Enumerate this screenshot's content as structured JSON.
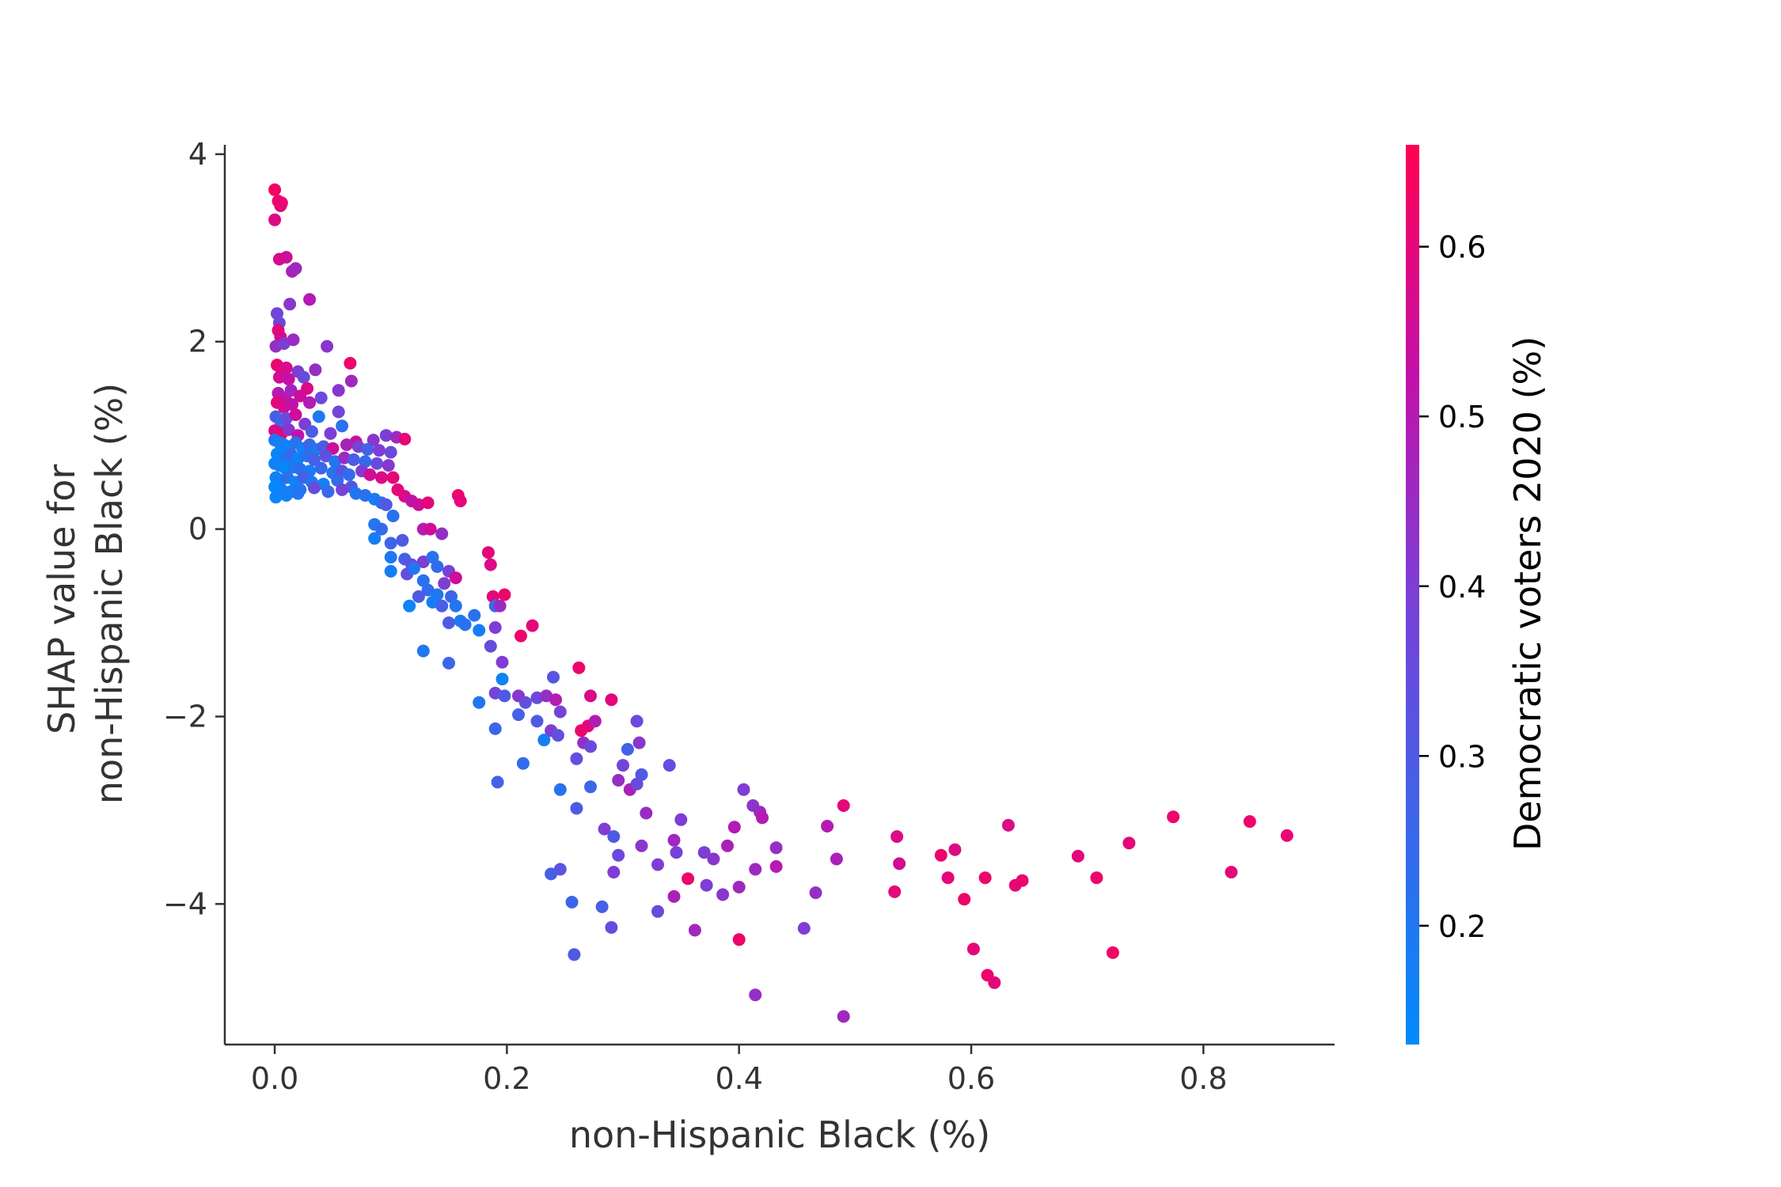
{
  "chart_data": {
    "type": "scatter",
    "xlabel": "non-Hispanic Black (%)",
    "ylabel_lines": [
      "SHAP value for",
      "non-Hispanic Black (%)"
    ],
    "xlim": [
      -0.043,
      0.913
    ],
    "ylim": [
      -5.5,
      4.1
    ],
    "xticks": [
      0.0,
      0.2,
      0.4,
      0.6,
      0.8
    ],
    "xtick_labels": [
      "0.0",
      "0.2",
      "0.4",
      "0.6",
      "0.8"
    ],
    "yticks": [
      4,
      2,
      0,
      -2,
      -4
    ],
    "ytick_labels": [
      "4",
      "2",
      "0",
      "−2",
      "−4"
    ],
    "grid": false,
    "colorbar": {
      "label": "Democratic voters 2020 (%)",
      "range": [
        0.13,
        0.66
      ],
      "ticks": [
        0.6,
        0.5,
        0.4,
        0.3,
        0.2
      ],
      "tick_labels": [
        "0.6",
        "0.5",
        "0.4",
        "0.3",
        "0.2"
      ],
      "low_color": "#008bfb",
      "high_color": "#ff0052"
    },
    "points": [
      [
        0.0,
        3.62,
        0.63
      ],
      [
        0.003,
        3.5,
        0.62
      ],
      [
        0.005,
        3.45,
        0.6
      ],
      [
        0.0,
        3.3,
        0.58
      ],
      [
        0.006,
        3.48,
        0.61
      ],
      [
        0.004,
        2.88,
        0.57
      ],
      [
        0.01,
        2.9,
        0.55
      ],
      [
        0.015,
        2.75,
        0.48
      ],
      [
        0.018,
        2.78,
        0.46
      ],
      [
        0.03,
        2.45,
        0.5
      ],
      [
        0.002,
        2.3,
        0.38
      ],
      [
        0.004,
        2.2,
        0.36
      ],
      [
        0.013,
        2.4,
        0.42
      ],
      [
        0.003,
        2.12,
        0.6
      ],
      [
        0.005,
        2.05,
        0.58
      ],
      [
        0.001,
        1.95,
        0.44
      ],
      [
        0.008,
        1.98,
        0.4
      ],
      [
        0.016,
        2.02,
        0.45
      ],
      [
        0.045,
        1.95,
        0.42
      ],
      [
        0.002,
        1.75,
        0.62
      ],
      [
        0.006,
        1.7,
        0.59
      ],
      [
        0.01,
        1.72,
        0.57
      ],
      [
        0.004,
        1.62,
        0.56
      ],
      [
        0.012,
        1.6,
        0.53
      ],
      [
        0.02,
        1.68,
        0.4
      ],
      [
        0.025,
        1.62,
        0.35
      ],
      [
        0.035,
        1.7,
        0.44
      ],
      [
        0.065,
        1.77,
        0.62
      ],
      [
        0.066,
        1.58,
        0.46
      ],
      [
        0.055,
        1.48,
        0.42
      ],
      [
        0.003,
        1.45,
        0.5
      ],
      [
        0.009,
        1.4,
        0.52
      ],
      [
        0.014,
        1.48,
        0.47
      ],
      [
        0.022,
        1.42,
        0.55
      ],
      [
        0.028,
        1.5,
        0.58
      ],
      [
        0.002,
        1.35,
        0.6
      ],
      [
        0.008,
        1.3,
        0.56
      ],
      [
        0.015,
        1.33,
        0.52
      ],
      [
        0.03,
        1.35,
        0.5
      ],
      [
        0.04,
        1.4,
        0.36
      ],
      [
        0.001,
        1.2,
        0.3
      ],
      [
        0.005,
        1.15,
        0.25
      ],
      [
        0.01,
        1.18,
        0.35
      ],
      [
        0.018,
        1.22,
        0.55
      ],
      [
        0.026,
        1.12,
        0.4
      ],
      [
        0.038,
        1.2,
        0.2
      ],
      [
        0.055,
        1.25,
        0.38
      ],
      [
        0.058,
        1.1,
        0.22
      ],
      [
        0.0,
        1.05,
        0.58
      ],
      [
        0.006,
        1.02,
        0.6
      ],
      [
        0.012,
        1.06,
        0.42
      ],
      [
        0.02,
        1.0,
        0.52
      ],
      [
        0.032,
        1.04,
        0.3
      ],
      [
        0.048,
        1.02,
        0.4
      ],
      [
        0.07,
        0.93,
        0.55
      ],
      [
        0.085,
        0.95,
        0.42
      ],
      [
        0.096,
        1.0,
        0.4
      ],
      [
        0.105,
        0.98,
        0.45
      ],
      [
        0.112,
        0.96,
        0.6
      ],
      [
        0.0,
        0.95,
        0.2
      ],
      [
        0.004,
        0.92,
        0.16
      ],
      [
        0.008,
        0.9,
        0.18
      ],
      [
        0.012,
        0.88,
        0.15
      ],
      [
        0.018,
        0.92,
        0.22
      ],
      [
        0.024,
        0.86,
        0.17
      ],
      [
        0.03,
        0.9,
        0.25
      ],
      [
        0.036,
        0.85,
        0.19
      ],
      [
        0.042,
        0.88,
        0.3
      ],
      [
        0.05,
        0.86,
        0.55
      ],
      [
        0.062,
        0.9,
        0.48
      ],
      [
        0.072,
        0.88,
        0.38
      ],
      [
        0.08,
        0.85,
        0.28
      ],
      [
        0.09,
        0.84,
        0.4
      ],
      [
        0.1,
        0.82,
        0.36
      ],
      [
        0.002,
        0.8,
        0.14
      ],
      [
        0.006,
        0.78,
        0.17
      ],
      [
        0.01,
        0.76,
        0.2
      ],
      [
        0.014,
        0.8,
        0.24
      ],
      [
        0.02,
        0.75,
        0.16
      ],
      [
        0.028,
        0.78,
        0.22
      ],
      [
        0.034,
        0.74,
        0.28
      ],
      [
        0.044,
        0.78,
        0.33
      ],
      [
        0.052,
        0.72,
        0.2
      ],
      [
        0.06,
        0.76,
        0.45
      ],
      [
        0.068,
        0.74,
        0.3
      ],
      [
        0.078,
        0.72,
        0.24
      ],
      [
        0.088,
        0.7,
        0.35
      ],
      [
        0.098,
        0.68,
        0.42
      ],
      [
        0.0,
        0.7,
        0.15
      ],
      [
        0.004,
        0.68,
        0.17
      ],
      [
        0.009,
        0.65,
        0.14
      ],
      [
        0.016,
        0.66,
        0.19
      ],
      [
        0.022,
        0.64,
        0.23
      ],
      [
        0.03,
        0.62,
        0.18
      ],
      [
        0.04,
        0.65,
        0.26
      ],
      [
        0.05,
        0.6,
        0.21
      ],
      [
        0.058,
        0.62,
        0.33
      ],
      [
        0.064,
        0.58,
        0.24
      ],
      [
        0.075,
        0.62,
        0.4
      ],
      [
        0.082,
        0.58,
        0.55
      ],
      [
        0.092,
        0.55,
        0.58
      ],
      [
        0.102,
        0.55,
        0.6
      ],
      [
        0.001,
        0.55,
        0.16
      ],
      [
        0.005,
        0.52,
        0.18
      ],
      [
        0.011,
        0.55,
        0.22
      ],
      [
        0.018,
        0.5,
        0.15
      ],
      [
        0.025,
        0.55,
        0.28
      ],
      [
        0.032,
        0.5,
        0.2
      ],
      [
        0.042,
        0.48,
        0.17
      ],
      [
        0.054,
        0.52,
        0.24
      ],
      [
        0.066,
        0.45,
        0.3
      ],
      [
        0.0,
        0.45,
        0.14
      ],
      [
        0.006,
        0.42,
        0.16
      ],
      [
        0.014,
        0.4,
        0.19
      ],
      [
        0.022,
        0.42,
        0.21
      ],
      [
        0.034,
        0.44,
        0.35
      ],
      [
        0.046,
        0.4,
        0.25
      ],
      [
        0.058,
        0.42,
        0.38
      ],
      [
        0.07,
        0.38,
        0.2
      ],
      [
        0.078,
        0.36,
        0.22
      ],
      [
        0.086,
        0.32,
        0.18
      ],
      [
        0.092,
        0.28,
        0.23
      ],
      [
        0.096,
        0.26,
        0.3
      ],
      [
        0.106,
        0.42,
        0.6
      ],
      [
        0.112,
        0.35,
        0.58
      ],
      [
        0.118,
        0.3,
        0.52
      ],
      [
        0.124,
        0.26,
        0.55
      ],
      [
        0.132,
        0.28,
        0.6
      ],
      [
        0.158,
        0.36,
        0.62
      ],
      [
        0.16,
        0.3,
        0.6
      ],
      [
        0.001,
        0.34,
        0.15
      ],
      [
        0.01,
        0.36,
        0.17
      ],
      [
        0.02,
        0.38,
        0.2
      ],
      [
        0.102,
        0.14,
        0.22
      ],
      [
        0.086,
        0.05,
        0.2
      ],
      [
        0.092,
        0.0,
        0.24
      ],
      [
        0.086,
        -0.1,
        0.18
      ],
      [
        0.1,
        -0.15,
        0.26
      ],
      [
        0.11,
        -0.12,
        0.3
      ],
      [
        0.128,
        0.0,
        0.5
      ],
      [
        0.134,
        0.0,
        0.55
      ],
      [
        0.144,
        -0.05,
        0.44
      ],
      [
        0.1,
        -0.3,
        0.2
      ],
      [
        0.112,
        -0.32,
        0.28
      ],
      [
        0.118,
        -0.38,
        0.35
      ],
      [
        0.128,
        -0.35,
        0.4
      ],
      [
        0.136,
        -0.3,
        0.22
      ],
      [
        0.1,
        -0.45,
        0.18
      ],
      [
        0.114,
        -0.48,
        0.34
      ],
      [
        0.12,
        -0.42,
        0.2
      ],
      [
        0.14,
        -0.4,
        0.24
      ],
      [
        0.15,
        -0.45,
        0.38
      ],
      [
        0.156,
        -0.52,
        0.55
      ],
      [
        0.146,
        -0.58,
        0.4
      ],
      [
        0.128,
        -0.55,
        0.22
      ],
      [
        0.132,
        -0.65,
        0.24
      ],
      [
        0.14,
        -0.7,
        0.2
      ],
      [
        0.152,
        -0.72,
        0.26
      ],
      [
        0.136,
        -0.78,
        0.18
      ],
      [
        0.144,
        -0.82,
        0.28
      ],
      [
        0.156,
        -0.82,
        0.2
      ],
      [
        0.16,
        -0.98,
        0.18
      ],
      [
        0.172,
        -0.92,
        0.22
      ],
      [
        0.116,
        -0.82,
        0.16
      ],
      [
        0.124,
        -0.72,
        0.3
      ],
      [
        0.15,
        -1.0,
        0.3
      ],
      [
        0.164,
        -1.02,
        0.22
      ],
      [
        0.176,
        -1.08,
        0.18
      ],
      [
        0.184,
        -0.25,
        0.6
      ],
      [
        0.186,
        -0.38,
        0.58
      ],
      [
        0.188,
        -0.72,
        0.6
      ],
      [
        0.198,
        -0.7,
        0.62
      ],
      [
        0.19,
        -0.82,
        0.24
      ],
      [
        0.194,
        -0.82,
        0.45
      ],
      [
        0.212,
        -1.14,
        0.62
      ],
      [
        0.222,
        -1.03,
        0.6
      ],
      [
        0.19,
        -1.05,
        0.4
      ],
      [
        0.186,
        -1.25,
        0.35
      ],
      [
        0.196,
        -1.42,
        0.4
      ],
      [
        0.128,
        -1.3,
        0.2
      ],
      [
        0.15,
        -1.43,
        0.26
      ],
      [
        0.196,
        -1.6,
        0.16
      ],
      [
        0.19,
        -1.75,
        0.38
      ],
      [
        0.198,
        -1.78,
        0.3
      ],
      [
        0.176,
        -1.85,
        0.2
      ],
      [
        0.21,
        -1.78,
        0.42
      ],
      [
        0.216,
        -1.85,
        0.34
      ],
      [
        0.21,
        -1.98,
        0.28
      ],
      [
        0.226,
        -1.8,
        0.36
      ],
      [
        0.234,
        -1.78,
        0.44
      ],
      [
        0.24,
        -1.58,
        0.32
      ],
      [
        0.242,
        -1.82,
        0.5
      ],
      [
        0.262,
        -1.48,
        0.62
      ],
      [
        0.272,
        -1.78,
        0.58
      ],
      [
        0.29,
        -1.82,
        0.6
      ],
      [
        0.246,
        -1.95,
        0.38
      ],
      [
        0.238,
        -2.15,
        0.4
      ],
      [
        0.244,
        -2.2,
        0.34
      ],
      [
        0.226,
        -2.05,
        0.3
      ],
      [
        0.232,
        -2.25,
        0.18
      ],
      [
        0.214,
        -2.5,
        0.24
      ],
      [
        0.192,
        -2.7,
        0.28
      ],
      [
        0.19,
        -2.13,
        0.26
      ],
      [
        0.264,
        -2.15,
        0.62
      ],
      [
        0.27,
        -2.1,
        0.6
      ],
      [
        0.276,
        -2.05,
        0.5
      ],
      [
        0.266,
        -2.28,
        0.44
      ],
      [
        0.272,
        -2.32,
        0.36
      ],
      [
        0.26,
        -2.45,
        0.34
      ],
      [
        0.312,
        -2.05,
        0.36
      ],
      [
        0.314,
        -2.28,
        0.42
      ],
      [
        0.304,
        -2.35,
        0.28
      ],
      [
        0.3,
        -2.52,
        0.38
      ],
      [
        0.316,
        -2.62,
        0.3
      ],
      [
        0.34,
        -2.52,
        0.34
      ],
      [
        0.246,
        -2.78,
        0.22
      ],
      [
        0.272,
        -2.75,
        0.26
      ],
      [
        0.296,
        -2.68,
        0.44
      ],
      [
        0.306,
        -2.78,
        0.48
      ],
      [
        0.312,
        -2.72,
        0.36
      ],
      [
        0.26,
        -2.98,
        0.3
      ],
      [
        0.32,
        -3.03,
        0.45
      ],
      [
        0.35,
        -3.1,
        0.4
      ],
      [
        0.284,
        -3.2,
        0.4
      ],
      [
        0.292,
        -3.28,
        0.3
      ],
      [
        0.316,
        -3.38,
        0.42
      ],
      [
        0.296,
        -3.48,
        0.36
      ],
      [
        0.33,
        -3.58,
        0.4
      ],
      [
        0.344,
        -3.32,
        0.46
      ],
      [
        0.346,
        -3.45,
        0.38
      ],
      [
        0.37,
        -3.45,
        0.4
      ],
      [
        0.378,
        -3.52,
        0.42
      ],
      [
        0.39,
        -3.38,
        0.48
      ],
      [
        0.396,
        -3.18,
        0.5
      ],
      [
        0.404,
        -2.78,
        0.4
      ],
      [
        0.412,
        -2.95,
        0.42
      ],
      [
        0.418,
        -3.02,
        0.46
      ],
      [
        0.42,
        -3.08,
        0.5
      ],
      [
        0.432,
        -3.4,
        0.44
      ],
      [
        0.432,
        -3.6,
        0.5
      ],
      [
        0.414,
        -3.63,
        0.46
      ],
      [
        0.238,
        -3.68,
        0.28
      ],
      [
        0.246,
        -3.63,
        0.32
      ],
      [
        0.292,
        -3.66,
        0.4
      ],
      [
        0.356,
        -3.73,
        0.62
      ],
      [
        0.372,
        -3.8,
        0.4
      ],
      [
        0.386,
        -3.9,
        0.42
      ],
      [
        0.4,
        -3.82,
        0.46
      ],
      [
        0.344,
        -3.92,
        0.48
      ],
      [
        0.256,
        -3.98,
        0.26
      ],
      [
        0.282,
        -4.03,
        0.28
      ],
      [
        0.33,
        -4.08,
        0.36
      ],
      [
        0.29,
        -4.25,
        0.34
      ],
      [
        0.362,
        -4.28,
        0.46
      ],
      [
        0.4,
        -4.38,
        0.62
      ],
      [
        0.456,
        -4.26,
        0.4
      ],
      [
        0.466,
        -3.88,
        0.44
      ],
      [
        0.476,
        -3.17,
        0.5
      ],
      [
        0.484,
        -3.52,
        0.48
      ],
      [
        0.49,
        -2.95,
        0.6
      ],
      [
        0.414,
        -4.97,
        0.44
      ],
      [
        0.49,
        -5.2,
        0.46
      ],
      [
        0.258,
        -4.54,
        0.3
      ],
      [
        0.536,
        -3.28,
        0.58
      ],
      [
        0.538,
        -3.57,
        0.56
      ],
      [
        0.534,
        -3.87,
        0.6
      ],
      [
        0.574,
        -3.48,
        0.62
      ],
      [
        0.58,
        -3.72,
        0.6
      ],
      [
        0.586,
        -3.42,
        0.58
      ],
      [
        0.594,
        -3.95,
        0.62
      ],
      [
        0.602,
        -4.48,
        0.6
      ],
      [
        0.612,
        -3.72,
        0.62
      ],
      [
        0.614,
        -4.76,
        0.62
      ],
      [
        0.62,
        -4.84,
        0.6
      ],
      [
        0.632,
        -3.16,
        0.58
      ],
      [
        0.638,
        -3.8,
        0.6
      ],
      [
        0.644,
        -3.75,
        0.62
      ],
      [
        0.692,
        -3.49,
        0.6
      ],
      [
        0.708,
        -3.72,
        0.62
      ],
      [
        0.722,
        -4.52,
        0.63
      ],
      [
        0.736,
        -3.35,
        0.6
      ],
      [
        0.774,
        -3.07,
        0.62
      ],
      [
        0.824,
        -3.66,
        0.6
      ],
      [
        0.84,
        -3.12,
        0.62
      ],
      [
        0.872,
        -3.27,
        0.61
      ]
    ]
  }
}
